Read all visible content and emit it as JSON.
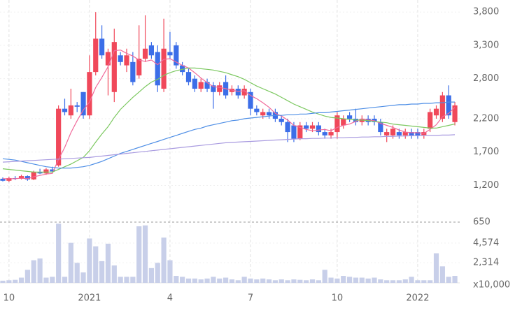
{
  "chart_data": {
    "type": "candlestick",
    "categories": [
      null,
      "10",
      null,
      null,
      null,
      null,
      null,
      null,
      null,
      null,
      null,
      null,
      null,
      null,
      "2021",
      null,
      null,
      null,
      null,
      null,
      null,
      null,
      null,
      null,
      null,
      null,
      null,
      "4",
      null,
      null,
      null,
      null,
      null,
      null,
      null,
      null,
      null,
      null,
      null,
      null,
      "7",
      null,
      null,
      null,
      null,
      null,
      null,
      null,
      null,
      null,
      null,
      null,
      null,
      null,
      "10",
      null,
      null,
      null,
      null,
      null,
      null,
      null,
      null,
      null,
      null,
      null,
      null,
      "2022",
      null,
      null,
      null,
      null,
      null,
      null
    ],
    "open": [
      1300,
      1270,
      1310,
      1300,
      1340,
      1290,
      1400,
      1380,
      1440,
      1500,
      2350,
      2250,
      2400,
      2600,
      2250,
      2900,
      3400,
      3000,
      2600,
      3150,
      3000,
      3050,
      2850,
      3100,
      3300,
      3200,
      2650,
      3200,
      3300,
      3000,
      2900,
      2800,
      2650,
      2750,
      2700,
      2600,
      2750,
      2600,
      2650,
      2550,
      2600,
      2350,
      2250,
      2300,
      2300,
      2200,
      2150,
      2100,
      1900,
      2100,
      2050,
      2100,
      2000,
      1950,
      2000,
      2100,
      2250,
      2200,
      2150,
      2200,
      2200,
      2150,
      1950,
      1950,
      2000,
      1950,
      2000,
      2000,
      1950,
      2050,
      2250,
      2200,
      2550,
      2150
    ],
    "high": [
      1320,
      1330,
      1340,
      1360,
      1350,
      1420,
      1450,
      1460,
      1480,
      2400,
      2500,
      2650,
      2450,
      2600,
      3150,
      3800,
      3600,
      3250,
      3550,
      3200,
      3250,
      3200,
      3600,
      3750,
      3350,
      3300,
      3700,
      3500,
      3350,
      3050,
      2950,
      2850,
      2800,
      2800,
      2750,
      2750,
      2850,
      2700,
      2700,
      2700,
      2650,
      2400,
      2350,
      2350,
      2350,
      2250,
      2200,
      2150,
      2150,
      2150,
      2150,
      2150,
      2050,
      2050,
      2300,
      2250,
      2300,
      2350,
      2250,
      2250,
      2250,
      2200,
      2050,
      2100,
      2050,
      2050,
      2050,
      2050,
      2050,
      2350,
      2400,
      2600,
      2700,
      2450
    ],
    "low": [
      1260,
      1250,
      1280,
      1290,
      1270,
      1280,
      1370,
      1360,
      1400,
      1480,
      2250,
      2200,
      2300,
      2200,
      2200,
      2850,
      3100,
      2550,
      2450,
      3000,
      2900,
      2700,
      2800,
      3050,
      3100,
      2600,
      2600,
      3100,
      2950,
      2850,
      2700,
      2600,
      2600,
      2600,
      2350,
      2550,
      2500,
      2550,
      2500,
      2500,
      2250,
      2250,
      2200,
      2200,
      2150,
      2100,
      1850,
      1850,
      1880,
      2000,
      2000,
      1950,
      1900,
      1900,
      1900,
      2050,
      2150,
      2100,
      2100,
      2100,
      2100,
      1950,
      1850,
      1900,
      1900,
      1900,
      1900,
      1900,
      1900,
      2000,
      2200,
      2150,
      2200,
      2100
    ],
    "close": [
      1270,
      1310,
      1300,
      1340,
      1290,
      1400,
      1380,
      1440,
      1410,
      2350,
      2300,
      2400,
      2380,
      2250,
      2900,
      3400,
      3150,
      3200,
      3350,
      3050,
      3150,
      2750,
      3100,
      3250,
      3150,
      2700,
      3250,
      3150,
      3000,
      2900,
      2750,
      2650,
      2750,
      2650,
      2600,
      2700,
      2550,
      2650,
      2550,
      2650,
      2350,
      2300,
      2300,
      2250,
      2200,
      2150,
      2000,
      1900,
      2100,
      2050,
      2100,
      2000,
      1950,
      2000,
      2250,
      2200,
      2200,
      2150,
      2200,
      2150,
      2150,
      2000,
      2000,
      2050,
      1950,
      2000,
      1950,
      1950,
      2000,
      2300,
      2350,
      2550,
      2250,
      2400
    ],
    "up_color": "#f0485a",
    "down_color": "#3c6ee8",
    "series": [
      {
        "color": "#f06a9a",
        "values": [
          1300,
          1300,
          1300,
          1310,
          1300,
          1330,
          1350,
          1370,
          1380,
          1590,
          1770,
          1990,
          2170,
          2330,
          2450,
          2670,
          2820,
          2980,
          3220,
          3230,
          3180,
          3140,
          3080,
          3060,
          3080,
          3010,
          3090,
          3100,
          3050,
          3000,
          2960,
          2890,
          2810,
          2740,
          2680,
          2670,
          2650,
          2630,
          2610,
          2620,
          2550,
          2500,
          2440,
          2370,
          2280,
          2240,
          2180,
          2100,
          2070,
          2040,
          2020,
          2030,
          2040,
          2020,
          2070,
          2100,
          2120,
          2160,
          2200,
          2180,
          2170,
          2130,
          2100,
          2070,
          2030,
          2000,
          1990,
          1990,
          1980,
          2040,
          2110,
          2230,
          2280,
          2370
        ]
      },
      {
        "color": "#7cc860",
        "values": [
          1450,
          1440,
          1430,
          1420,
          1410,
          1400,
          1400,
          1400,
          1400,
          1440,
          1480,
          1520,
          1570,
          1620,
          1720,
          1850,
          1970,
          2080,
          2220,
          2340,
          2430,
          2520,
          2600,
          2680,
          2750,
          2790,
          2850,
          2890,
          2920,
          2940,
          2960,
          2960,
          2950,
          2940,
          2930,
          2910,
          2890,
          2860,
          2830,
          2790,
          2740,
          2690,
          2650,
          2610,
          2570,
          2520,
          2470,
          2420,
          2380,
          2340,
          2300,
          2270,
          2240,
          2220,
          2210,
          2200,
          2190,
          2180,
          2180,
          2170,
          2160,
          2150,
          2140,
          2120,
          2110,
          2100,
          2090,
          2080,
          2070,
          2060,
          2060,
          2080,
          2100,
          2120
        ]
      },
      {
        "color": "#4f8fe6",
        "values": [
          1600,
          1590,
          1580,
          1560,
          1540,
          1520,
          1500,
          1480,
          1470,
          1460,
          1460,
          1460,
          1470,
          1480,
          1500,
          1530,
          1560,
          1600,
          1640,
          1680,
          1710,
          1740,
          1770,
          1800,
          1830,
          1860,
          1890,
          1920,
          1950,
          1980,
          2010,
          2040,
          2060,
          2090,
          2110,
          2130,
          2150,
          2170,
          2180,
          2200,
          2210,
          2220,
          2230,
          2240,
          2250,
          2250,
          2260,
          2260,
          2270,
          2270,
          2280,
          2290,
          2290,
          2300,
          2310,
          2320,
          2330,
          2340,
          2350,
          2360,
          2370,
          2380,
          2390,
          2400,
          2410,
          2410,
          2420,
          2420,
          2430,
          2430,
          2440,
          2440,
          2450,
          2450
        ]
      },
      {
        "color": "#a99be0",
        "values": [
          1550,
          1555,
          1560,
          1565,
          1570,
          1575,
          1580,
          1585,
          1590,
          1595,
          1600,
          1605,
          1610,
          1615,
          1620,
          1630,
          1640,
          1650,
          1660,
          1670,
          1680,
          1690,
          1700,
          1710,
          1720,
          1730,
          1740,
          1750,
          1760,
          1770,
          1780,
          1790,
          1800,
          1810,
          1820,
          1830,
          1840,
          1845,
          1850,
          1855,
          1860,
          1865,
          1870,
          1875,
          1880,
          1885,
          1890,
          1895,
          1900,
          1900,
          1905,
          1905,
          1910,
          1910,
          1915,
          1915,
          1920,
          1920,
          1925,
          1925,
          1930,
          1930,
          1935,
          1935,
          1940,
          1940,
          1945,
          1945,
          1950,
          1950,
          1950,
          1955,
          1955,
          1960
        ]
      }
    ],
    "ylim": [
      650,
      3980
    ],
    "yticks": [
      {
        "value": 3800,
        "label": "3,800"
      },
      {
        "value": 3300,
        "label": "3,300"
      },
      {
        "value": 2800,
        "label": "2,800"
      },
      {
        "value": 2200,
        "label": "2,200"
      },
      {
        "value": 1700,
        "label": "1,700"
      },
      {
        "value": 1200,
        "label": "1,200"
      },
      650
    ],
    "volume": {
      "color": "#c8cfe9",
      "unit_label": "x10,000",
      "values": [
        250,
        300,
        350,
        600,
        1500,
        2600,
        2800,
        600,
        700,
        6800,
        700,
        4600,
        2300,
        1200,
        5100,
        4200,
        2500,
        4500,
        2000,
        700,
        700,
        700,
        6500,
        6600,
        1700,
        2300,
        5200,
        2600,
        800,
        700,
        500,
        500,
        400,
        500,
        700,
        500,
        600,
        400,
        300,
        700,
        500,
        400,
        500,
        400,
        300,
        400,
        300,
        400,
        350,
        300,
        400,
        300,
        1500,
        600,
        500,
        800,
        700,
        600,
        600,
        500,
        600,
        400,
        300,
        300,
        300,
        400,
        700,
        300,
        300,
        300,
        3400,
        1900,
        700,
        800
      ],
      "ylim": [
        0,
        6900
      ],
      "yticks": [
        {
          "value": 4574,
          "label": "4,574"
        },
        {
          "value": 2314,
          "label": "2,314"
        }
      ]
    },
    "grid": true
  }
}
